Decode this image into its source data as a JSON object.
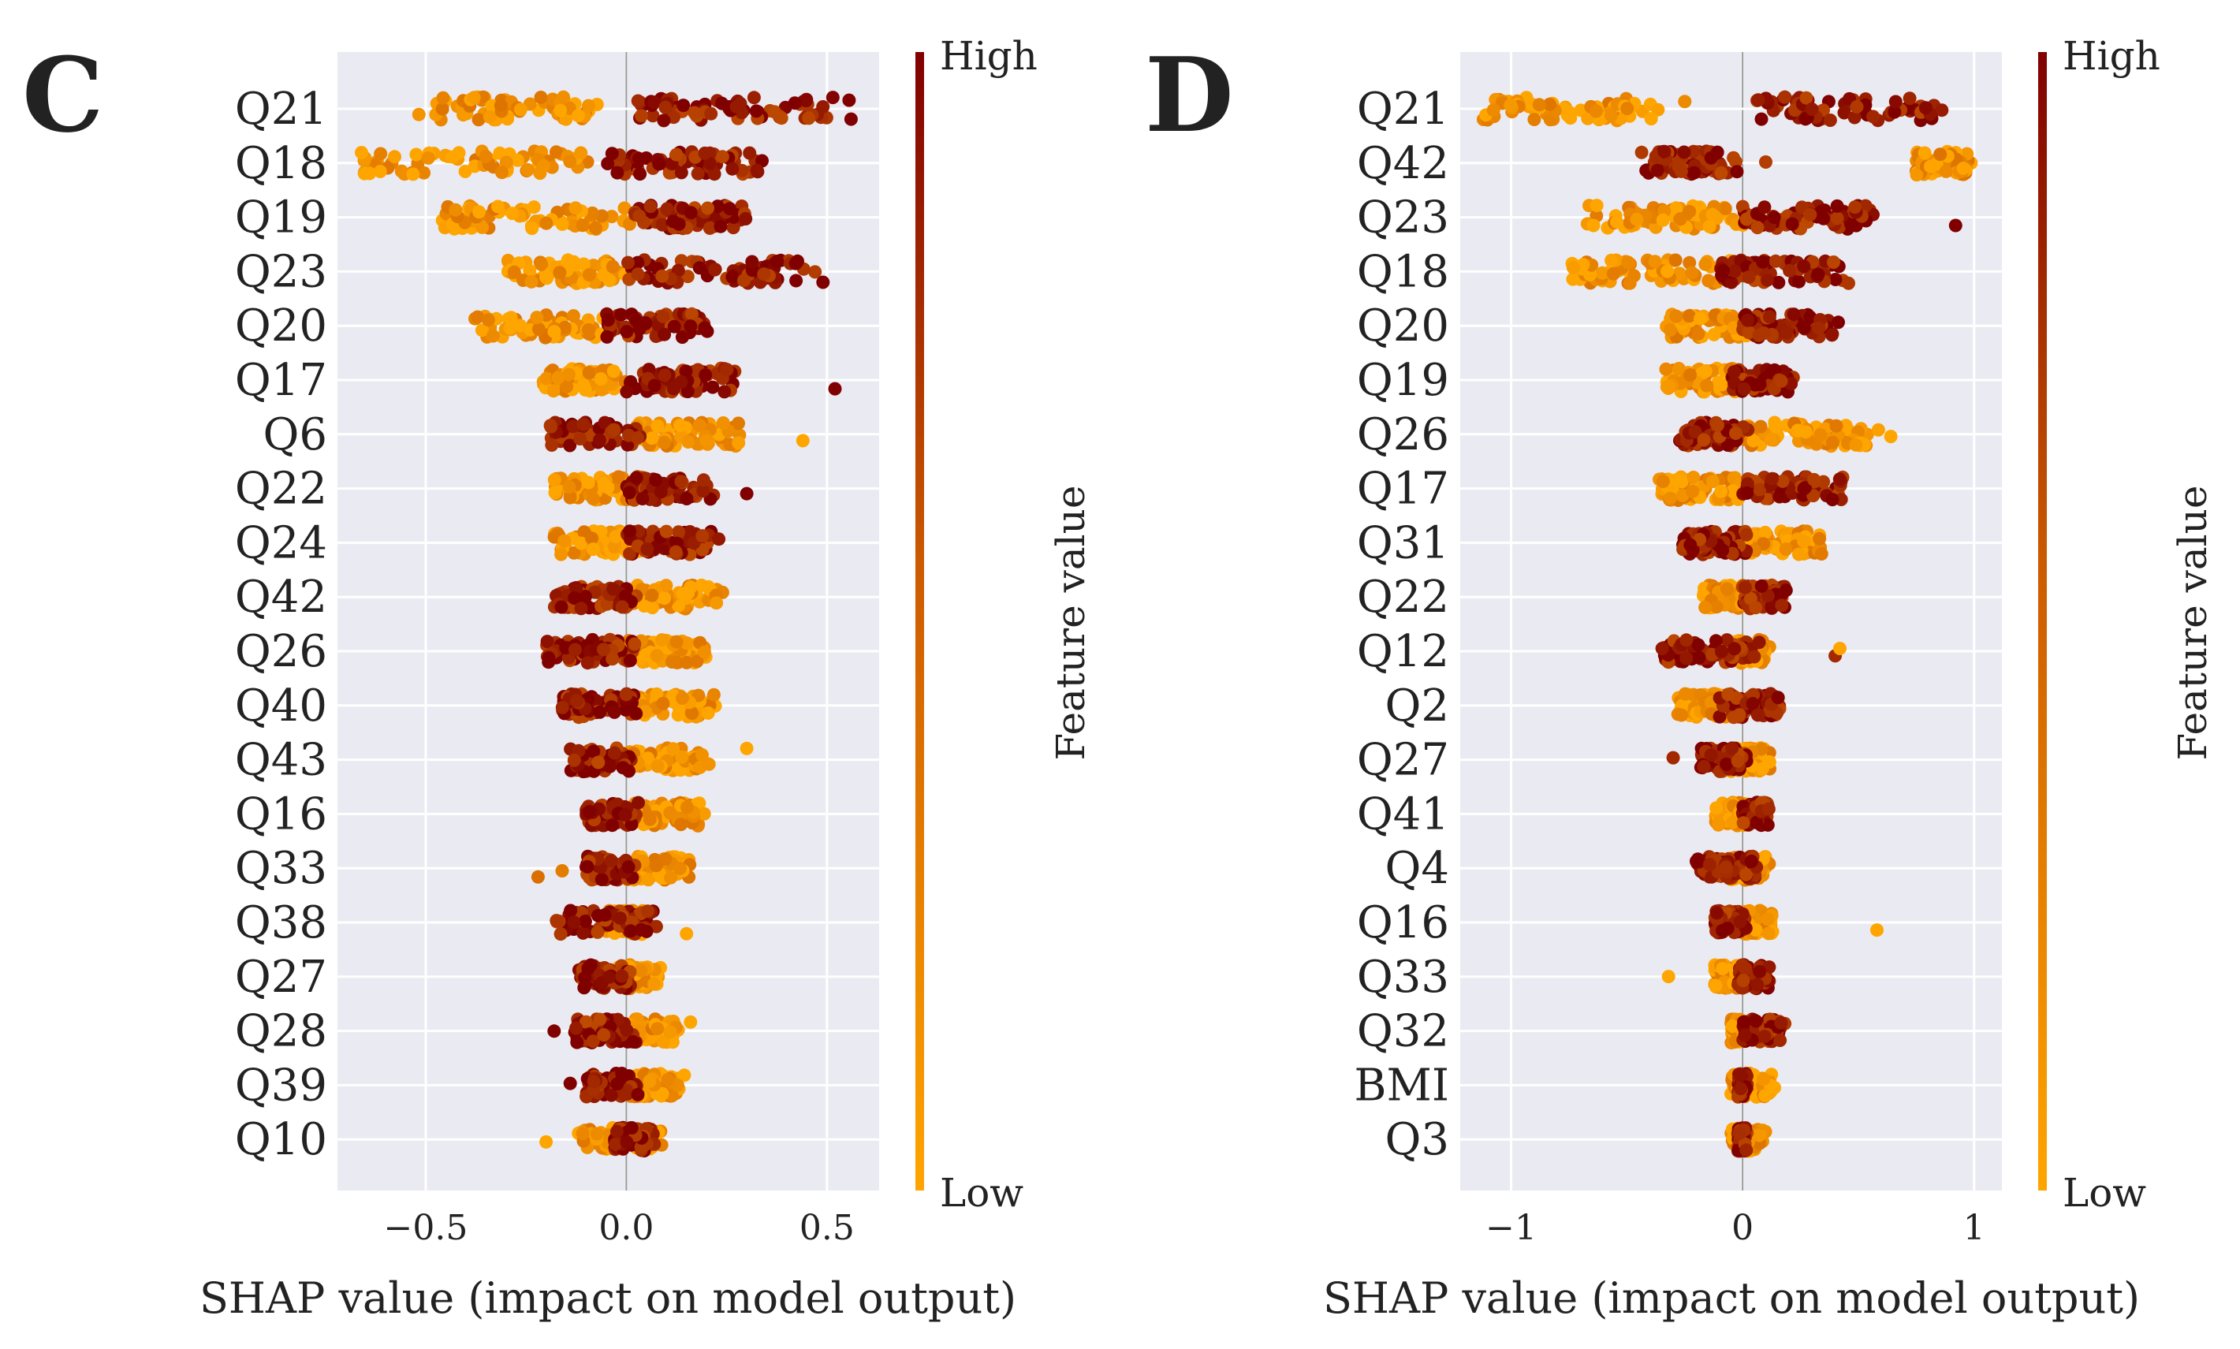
{
  "chart_data": [
    {
      "type": "scatter",
      "panel_label": "C",
      "xlabel": "SHAP value (impact on model output)",
      "xlim": [
        -0.72,
        0.63
      ],
      "xticks": [
        -0.5,
        0.0,
        0.5
      ],
      "xtick_labels": [
        "−0.5",
        "0.0",
        "0.5"
      ],
      "grid": true,
      "colorbar": {
        "label": "Feature value",
        "high": "High",
        "low": "Low"
      },
      "features": [
        {
          "name": "Q21",
          "low_range": [
            -0.52,
            0.0
          ],
          "high_range": [
            0.02,
            0.56
          ],
          "outliers": [
            [
              0.42,
              1
            ],
            [
              0.56,
              1
            ]
          ]
        },
        {
          "name": "Q18",
          "low_range": [
            -0.66,
            -0.05
          ],
          "high_range": [
            -0.05,
            0.35
          ],
          "outliers": [
            [
              -0.66,
              0
            ]
          ]
        },
        {
          "name": "Q19",
          "low_range": [
            -0.46,
            0.02
          ],
          "high_range": [
            0.02,
            0.33
          ],
          "outliers": []
        },
        {
          "name": "Q23",
          "low_range": [
            -0.3,
            0.0
          ],
          "high_range": [
            0.0,
            0.49
          ],
          "outliers": [
            [
              0.49,
              1
            ]
          ]
        },
        {
          "name": "Q20",
          "low_range": [
            -0.38,
            -0.02
          ],
          "high_range": [
            -0.05,
            0.22
          ],
          "outliers": []
        },
        {
          "name": "Q17",
          "low_range": [
            -0.21,
            0.02
          ],
          "high_range": [
            0.0,
            0.29
          ],
          "outliers": [
            [
              0.52,
              1
            ]
          ]
        },
        {
          "name": "Q6",
          "low_range": [
            0.02,
            0.29
          ],
          "high_range": [
            -0.19,
            0.05
          ],
          "outliers": [
            [
              0.44,
              0
            ]
          ]
        },
        {
          "name": "Q22",
          "low_range": [
            -0.18,
            0.05
          ],
          "high_range": [
            0.0,
            0.22
          ],
          "outliers": [
            [
              0.3,
              1
            ]
          ]
        },
        {
          "name": "Q24",
          "low_range": [
            -0.18,
            0.03
          ],
          "high_range": [
            0.0,
            0.24
          ],
          "outliers": []
        },
        {
          "name": "Q42",
          "low_range": [
            0.0,
            0.24
          ],
          "high_range": [
            -0.18,
            0.03
          ],
          "outliers": []
        },
        {
          "name": "Q26",
          "low_range": [
            0.0,
            0.2
          ],
          "high_range": [
            -0.2,
            0.03
          ],
          "outliers": []
        },
        {
          "name": "Q40",
          "low_range": [
            0.0,
            0.24
          ],
          "high_range": [
            -0.16,
            0.03
          ],
          "outliers": []
        },
        {
          "name": "Q43",
          "low_range": [
            0.0,
            0.22
          ],
          "high_range": [
            -0.14,
            0.03
          ],
          "outliers": [
            [
              0.3,
              0
            ]
          ]
        },
        {
          "name": "Q16",
          "low_range": [
            0.0,
            0.21
          ],
          "high_range": [
            -0.1,
            0.03
          ],
          "outliers": []
        },
        {
          "name": "Q33",
          "low_range": [
            0.0,
            0.16
          ],
          "high_range": [
            -0.1,
            0.03
          ],
          "outliers": [
            [
              -0.22,
              0.4
            ],
            [
              -0.16,
              0.3
            ]
          ]
        },
        {
          "name": "Q38",
          "low_range": [
            -0.05,
            0.05
          ],
          "high_range": [
            -0.18,
            0.09
          ],
          "outliers": [
            [
              0.15,
              0
            ]
          ]
        },
        {
          "name": "Q27",
          "low_range": [
            -0.02,
            0.09
          ],
          "high_range": [
            -0.12,
            0.02
          ],
          "outliers": []
        },
        {
          "name": "Q28",
          "low_range": [
            0.0,
            0.14
          ],
          "high_range": [
            -0.13,
            0.03
          ],
          "outliers": [
            [
              -0.18,
              1
            ],
            [
              0.16,
              0
            ]
          ]
        },
        {
          "name": "Q39",
          "low_range": [
            0.0,
            0.15
          ],
          "high_range": [
            -0.1,
            0.03
          ],
          "outliers": [
            [
              -0.14,
              1
            ]
          ]
        },
        {
          "name": "Q10",
          "low_range": [
            -0.12,
            0.1
          ],
          "high_range": [
            -0.03,
            0.08
          ],
          "outliers": [
            [
              -0.2,
              0
            ]
          ]
        }
      ]
    },
    {
      "type": "scatter",
      "panel_label": "D",
      "xlabel": "SHAP value (impact on model output)",
      "xlim": [
        -1.22,
        1.12
      ],
      "xticks": [
        -1,
        0,
        1
      ],
      "xtick_labels": [
        "−1",
        "0",
        "1"
      ],
      "grid": true,
      "colorbar": {
        "label": "Feature value",
        "high": "High",
        "low": "Low"
      },
      "features": [
        {
          "name": "Q21",
          "low_range": [
            -1.12,
            -0.35
          ],
          "high_range": [
            0.05,
            0.9
          ],
          "outliers": [
            [
              -0.25,
              0.2
            ]
          ]
        },
        {
          "name": "Q42",
          "low_range": [
            0.75,
            1.02
          ],
          "high_range": [
            -0.45,
            -0.02
          ],
          "outliers": [
            [
              0.1,
              0.7
            ]
          ]
        },
        {
          "name": "Q23",
          "low_range": [
            -0.7,
            0.02
          ],
          "high_range": [
            0.0,
            0.6
          ],
          "outliers": [
            [
              0.92,
              1
            ]
          ]
        },
        {
          "name": "Q18",
          "low_range": [
            -0.75,
            0.0
          ],
          "high_range": [
            -0.1,
            0.52
          ],
          "outliers": []
        },
        {
          "name": "Q20",
          "low_range": [
            -0.33,
            0.02
          ],
          "high_range": [
            0.0,
            0.42
          ],
          "outliers": []
        },
        {
          "name": "Q19",
          "low_range": [
            -0.35,
            0.02
          ],
          "high_range": [
            -0.05,
            0.25
          ],
          "outliers": []
        },
        {
          "name": "Q26",
          "low_range": [
            0.0,
            0.65
          ],
          "high_range": [
            -0.28,
            0.03
          ],
          "outliers": [
            [
              0.64,
              0
            ]
          ]
        },
        {
          "name": "Q17",
          "low_range": [
            -0.36,
            0.02
          ],
          "high_range": [
            0.0,
            0.47
          ],
          "outliers": []
        },
        {
          "name": "Q31",
          "low_range": [
            0.0,
            0.36
          ],
          "high_range": [
            -0.26,
            0.03
          ],
          "outliers": []
        },
        {
          "name": "Q22",
          "low_range": [
            -0.18,
            0.02
          ],
          "high_range": [
            0.0,
            0.2
          ],
          "outliers": []
        },
        {
          "name": "Q12",
          "low_range": [
            -0.05,
            0.12
          ],
          "high_range": [
            -0.35,
            0.1
          ],
          "outliers": [
            [
              0.4,
              0.8
            ],
            [
              0.42,
              0
            ]
          ]
        },
        {
          "name": "Q2",
          "low_range": [
            -0.28,
            0.02
          ],
          "high_range": [
            -0.1,
            0.18
          ],
          "outliers": []
        },
        {
          "name": "Q27",
          "low_range": [
            -0.05,
            0.12
          ],
          "high_range": [
            -0.18,
            0.02
          ],
          "outliers": [
            [
              -0.3,
              0.8
            ]
          ]
        },
        {
          "name": "Q41",
          "low_range": [
            -0.12,
            0.02
          ],
          "high_range": [
            0.0,
            0.12
          ],
          "outliers": []
        },
        {
          "name": "Q4",
          "low_range": [
            -0.05,
            0.12
          ],
          "high_range": [
            -0.2,
            0.08
          ],
          "outliers": [
            [
              -0.2,
              1
            ]
          ]
        },
        {
          "name": "Q16",
          "low_range": [
            0.0,
            0.15
          ],
          "high_range": [
            -0.12,
            0.02
          ],
          "outliers": [
            [
              0.58,
              0
            ]
          ]
        },
        {
          "name": "Q33",
          "low_range": [
            -0.12,
            0.02
          ],
          "high_range": [
            -0.02,
            0.12
          ],
          "outliers": [
            [
              -0.32,
              0
            ]
          ]
        },
        {
          "name": "Q32",
          "low_range": [
            -0.05,
            0.02
          ],
          "high_range": [
            0.0,
            0.2
          ],
          "outliers": []
        },
        {
          "name": "BMI",
          "low_range": [
            -0.05,
            0.15
          ],
          "high_range": [
            -0.02,
            0.02
          ],
          "outliers": []
        },
        {
          "name": "Q3",
          "low_range": [
            -0.05,
            0.1
          ],
          "high_range": [
            -0.02,
            0.02
          ],
          "outliers": []
        }
      ]
    }
  ],
  "colors": {
    "panel_bg": "#eaeaf2",
    "grid": "#ffffff",
    "zero_line": "#999999",
    "low": "#ffa500",
    "high": "#800000"
  }
}
